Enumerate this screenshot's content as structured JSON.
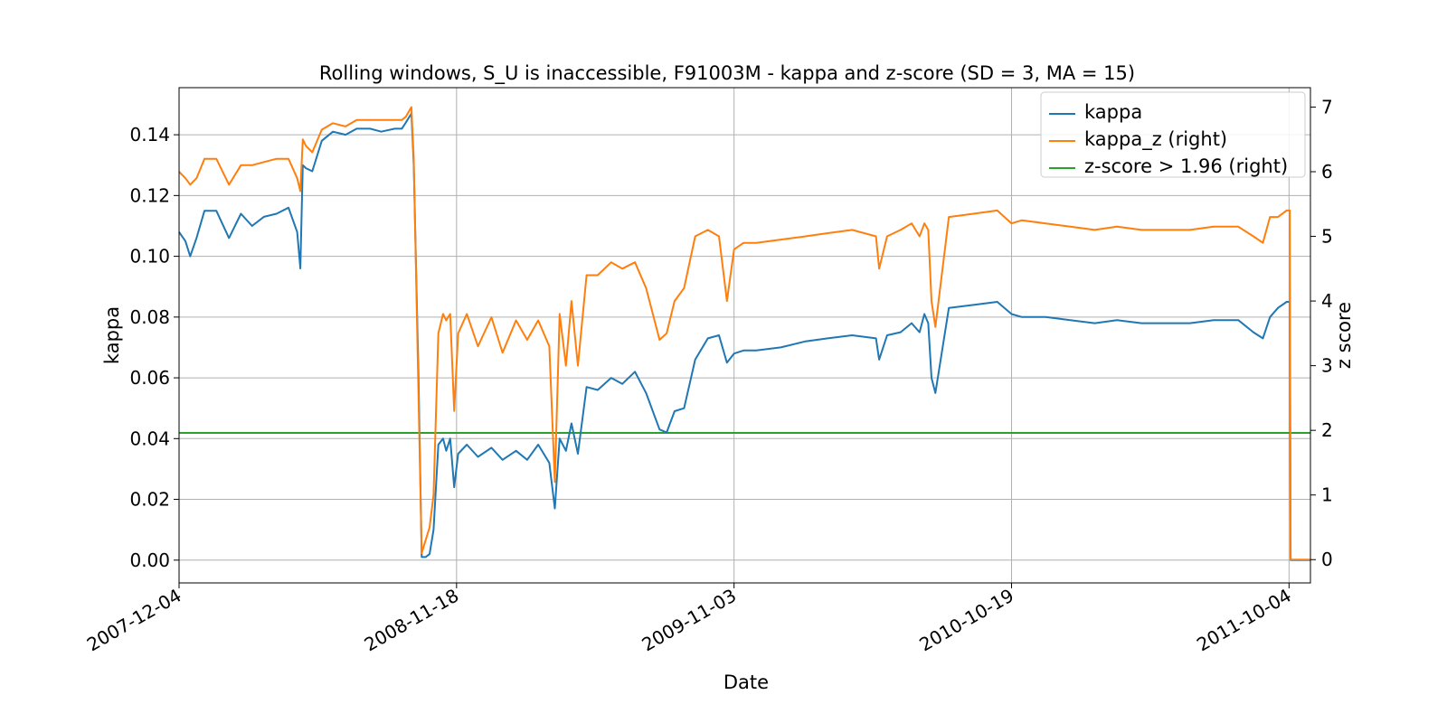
{
  "chart_data": {
    "type": "line",
    "title": "Rolling windows, S_U is inaccessible, F91003M - kappa and z-score (SD = 3, MA = 15)",
    "xlabel": "Date",
    "ylabel": "kappa",
    "ylabel_right": "z score",
    "x_ticks": [
      "2007-12-04",
      "2008-11-18",
      "2009-11-03",
      "2010-10-19",
      "2011-10-04"
    ],
    "xlim": [
      "2007-12-04",
      "2011-10-31"
    ],
    "ylim": [
      -0.0075,
      0.1555
    ],
    "ylim_right": [
      -0.36,
      7.3
    ],
    "y_ticks": [
      0.0,
      0.02,
      0.04,
      0.06,
      0.08,
      0.1,
      0.12,
      0.14
    ],
    "y_ticks_right": [
      0,
      1,
      2,
      3,
      4,
      5,
      6,
      7
    ],
    "grid": true,
    "legend_position": "top-right",
    "series": [
      {
        "name": "kappa",
        "axis": "left",
        "color": "#1f77b4",
        "x": [
          "2007-12-04",
          "2007-12-12",
          "2007-12-18",
          "2007-12-26",
          "2008-01-05",
          "2008-01-20",
          "2008-02-05",
          "2008-02-20",
          "2008-03-05",
          "2008-03-20",
          "2008-04-05",
          "2008-04-20",
          "2008-05-01",
          "2008-05-05",
          "2008-05-08",
          "2008-05-12",
          "2008-05-20",
          "2008-06-01",
          "2008-06-15",
          "2008-07-01",
          "2008-07-15",
          "2008-08-01",
          "2008-08-15",
          "2008-09-01",
          "2008-09-10",
          "2008-09-15",
          "2008-09-22",
          "2008-09-25",
          "2008-10-01",
          "2008-10-05",
          "2008-10-10",
          "2008-10-15",
          "2008-10-20",
          "2008-10-26",
          "2008-11-01",
          "2008-11-05",
          "2008-11-10",
          "2008-11-15",
          "2008-11-20",
          "2008-12-01",
          "2008-12-15",
          "2009-01-01",
          "2009-01-15",
          "2009-02-01",
          "2009-02-15",
          "2009-03-01",
          "2009-03-15",
          "2009-03-22",
          "2009-03-28",
          "2009-04-05",
          "2009-04-12",
          "2009-04-20",
          "2009-05-01",
          "2009-05-15",
          "2009-06-01",
          "2009-06-15",
          "2009-07-01",
          "2009-07-15",
          "2009-08-01",
          "2009-08-10",
          "2009-08-20",
          "2009-09-01",
          "2009-09-15",
          "2009-10-01",
          "2009-10-15",
          "2009-10-25",
          "2009-11-03",
          "2009-11-15",
          "2009-12-01",
          "2010-01-01",
          "2010-02-01",
          "2010-03-01",
          "2010-04-01",
          "2010-05-01",
          "2010-05-05",
          "2010-05-15",
          "2010-06-01",
          "2010-06-15",
          "2010-06-25",
          "2010-07-01",
          "2010-07-06",
          "2010-07-10",
          "2010-07-15",
          "2010-08-01",
          "2010-09-01",
          "2010-10-01",
          "2010-10-19",
          "2010-11-01",
          "2010-12-01",
          "2011-01-01",
          "2011-02-01",
          "2011-03-01",
          "2011-04-01",
          "2011-05-01",
          "2011-06-01",
          "2011-07-01",
          "2011-08-01",
          "2011-08-20",
          "2011-09-01",
          "2011-09-10",
          "2011-09-20",
          "2011-10-01",
          "2011-10-05",
          "2011-10-06",
          "2011-10-15",
          "2011-10-31"
        ],
        "y": [
          0.108,
          0.105,
          0.1,
          0.106,
          0.115,
          0.115,
          0.106,
          0.114,
          0.11,
          0.113,
          0.114,
          0.116,
          0.108,
          0.096,
          0.13,
          0.129,
          0.128,
          0.138,
          0.141,
          0.14,
          0.142,
          0.142,
          0.141,
          0.142,
          0.142,
          0.144,
          0.147,
          0.13,
          0.06,
          0.001,
          0.001,
          0.002,
          0.01,
          0.038,
          0.04,
          0.036,
          0.04,
          0.024,
          0.035,
          0.038,
          0.034,
          0.037,
          0.033,
          0.036,
          0.033,
          0.038,
          0.032,
          0.017,
          0.04,
          0.036,
          0.045,
          0.035,
          0.057,
          0.056,
          0.06,
          0.058,
          0.062,
          0.055,
          0.043,
          0.042,
          0.049,
          0.05,
          0.066,
          0.073,
          0.074,
          0.065,
          0.068,
          0.069,
          0.069,
          0.07,
          0.072,
          0.073,
          0.074,
          0.073,
          0.066,
          0.074,
          0.075,
          0.078,
          0.075,
          0.081,
          0.078,
          0.06,
          0.055,
          0.083,
          0.084,
          0.085,
          0.081,
          0.08,
          0.08,
          0.079,
          0.078,
          0.079,
          0.078,
          0.078,
          0.078,
          0.079,
          0.079,
          0.075,
          0.073,
          0.08,
          0.083,
          0.085,
          0.085,
          0.0,
          0.0,
          0.0
        ]
      },
      {
        "name": "kappa_z (right)",
        "axis": "right",
        "color": "#ff7f0e",
        "x": [
          "2007-12-04",
          "2007-12-12",
          "2007-12-18",
          "2007-12-26",
          "2008-01-05",
          "2008-01-20",
          "2008-02-05",
          "2008-02-20",
          "2008-03-05",
          "2008-03-20",
          "2008-04-05",
          "2008-04-20",
          "2008-05-01",
          "2008-05-05",
          "2008-05-08",
          "2008-05-12",
          "2008-05-20",
          "2008-06-01",
          "2008-06-15",
          "2008-07-01",
          "2008-07-15",
          "2008-08-01",
          "2008-08-15",
          "2008-09-01",
          "2008-09-10",
          "2008-09-15",
          "2008-09-22",
          "2008-09-25",
          "2008-10-01",
          "2008-10-05",
          "2008-10-10",
          "2008-10-15",
          "2008-10-20",
          "2008-10-26",
          "2008-11-01",
          "2008-11-05",
          "2008-11-10",
          "2008-11-15",
          "2008-11-20",
          "2008-12-01",
          "2008-12-15",
          "2009-01-01",
          "2009-01-15",
          "2009-02-01",
          "2009-02-15",
          "2009-03-01",
          "2009-03-15",
          "2009-03-22",
          "2009-03-28",
          "2009-04-05",
          "2009-04-12",
          "2009-04-20",
          "2009-05-01",
          "2009-05-15",
          "2009-06-01",
          "2009-06-15",
          "2009-07-01",
          "2009-07-15",
          "2009-08-01",
          "2009-08-10",
          "2009-08-20",
          "2009-09-01",
          "2009-09-15",
          "2009-10-01",
          "2009-10-15",
          "2009-10-25",
          "2009-11-03",
          "2009-11-15",
          "2009-12-01",
          "2010-01-01",
          "2010-02-01",
          "2010-03-01",
          "2010-04-01",
          "2010-05-01",
          "2010-05-05",
          "2010-05-15",
          "2010-06-01",
          "2010-06-15",
          "2010-06-25",
          "2010-07-01",
          "2010-07-06",
          "2010-07-10",
          "2010-07-15",
          "2010-08-01",
          "2010-09-01",
          "2010-10-01",
          "2010-10-19",
          "2010-11-01",
          "2010-12-01",
          "2011-01-01",
          "2011-02-01",
          "2011-03-01",
          "2011-04-01",
          "2011-05-01",
          "2011-06-01",
          "2011-07-01",
          "2011-08-01",
          "2011-08-20",
          "2011-09-01",
          "2011-09-10",
          "2011-09-20",
          "2011-10-01",
          "2011-10-05",
          "2011-10-06",
          "2011-10-15",
          "2011-10-31"
        ],
        "y": [
          6.0,
          5.9,
          5.8,
          5.9,
          6.2,
          6.2,
          5.8,
          6.1,
          6.1,
          6.15,
          6.2,
          6.2,
          5.9,
          5.7,
          6.5,
          6.4,
          6.3,
          6.65,
          6.75,
          6.7,
          6.8,
          6.8,
          6.8,
          6.8,
          6.8,
          6.85,
          7.0,
          6.2,
          2.5,
          0.1,
          0.3,
          0.5,
          1.0,
          3.5,
          3.8,
          3.7,
          3.8,
          2.3,
          3.5,
          3.8,
          3.3,
          3.75,
          3.2,
          3.7,
          3.4,
          3.7,
          3.3,
          1.2,
          3.8,
          3.0,
          4.0,
          3.0,
          4.4,
          4.4,
          4.6,
          4.5,
          4.6,
          4.2,
          3.4,
          3.5,
          4.0,
          4.2,
          5.0,
          5.1,
          5.0,
          4.0,
          4.8,
          4.9,
          4.9,
          4.95,
          5.0,
          5.05,
          5.1,
          5.0,
          4.5,
          5.0,
          5.1,
          5.2,
          5.0,
          5.2,
          5.1,
          4.0,
          3.6,
          5.3,
          5.35,
          5.4,
          5.2,
          5.25,
          5.2,
          5.15,
          5.1,
          5.15,
          5.1,
          5.1,
          5.1,
          5.15,
          5.15,
          5.0,
          4.9,
          5.3,
          5.3,
          5.4,
          5.4,
          0.0,
          0.0,
          0.0
        ]
      },
      {
        "name": "z-score > 1.96 (right)",
        "axis": "right",
        "color": "#2ca02c",
        "x": [
          "2007-12-04",
          "2011-10-31"
        ],
        "y": [
          1.96,
          1.96
        ]
      }
    ]
  }
}
